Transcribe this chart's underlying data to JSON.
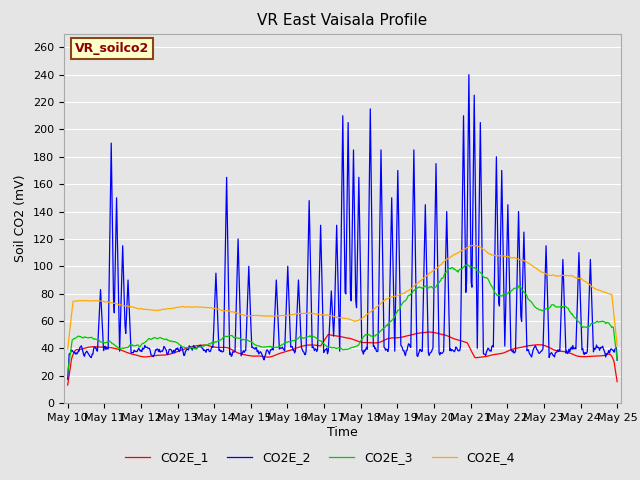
{
  "title": "VR East Vaisala Profile",
  "xlabel": "Time",
  "ylabel": "Soil CO2 (mV)",
  "ylim": [
    0,
    270
  ],
  "background_color": "#e5e5e5",
  "annotation": "VR_soilco2",
  "annotation_color": "#8B0000",
  "annotation_bg": "#ffffcc",
  "annotation_border": "#8B4513",
  "legend_labels": [
    "CO2E_1",
    "CO2E_2",
    "CO2E_3",
    "CO2E_4"
  ],
  "line_colors": [
    "#ff0000",
    "#0000ff",
    "#00cc00",
    "#ffaa00"
  ],
  "x_tick_labels": [
    "May 10",
    "May 11",
    "May 12",
    "May 13",
    "May 14",
    "May 15",
    "May 16",
    "May 17",
    "May 18",
    "May 19",
    "May 20",
    "May 21",
    "May 22",
    "May 23",
    "May 24",
    "May 25"
  ],
  "yticks": [
    0,
    20,
    40,
    60,
    80,
    100,
    120,
    140,
    160,
    180,
    200,
    220,
    240,
    260
  ],
  "title_fontsize": 11,
  "axis_label_fontsize": 9,
  "tick_fontsize": 8,
  "legend_fontsize": 9,
  "annotation_fontsize": 9
}
